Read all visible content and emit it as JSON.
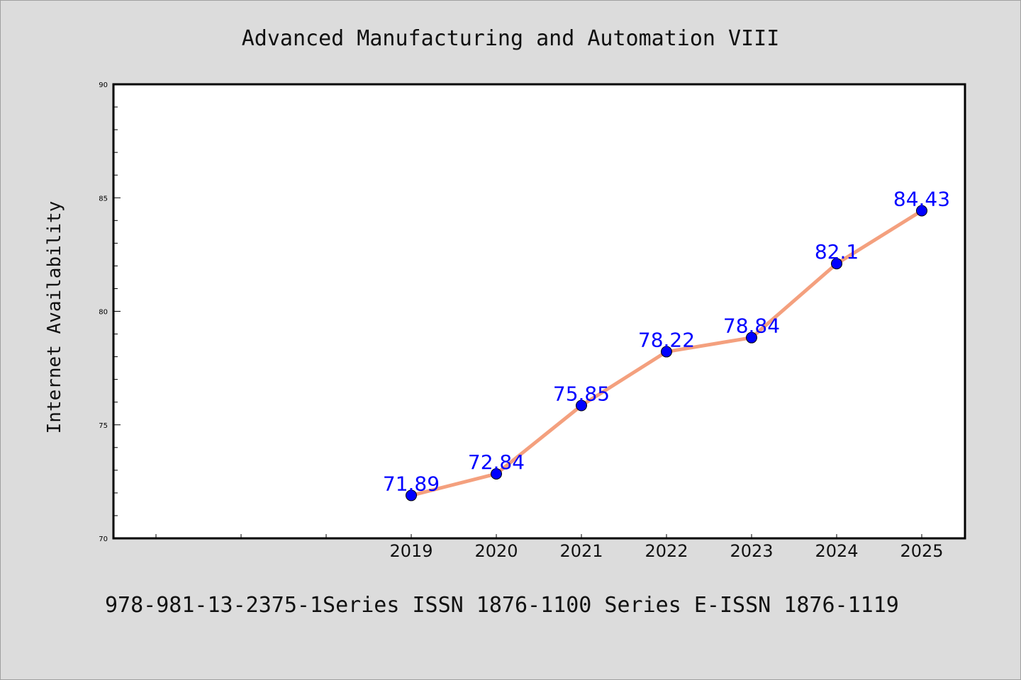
{
  "chart_data": {
    "type": "line",
    "title": "Advanced Manufacturing and Automation VIII",
    "ylabel": "Internet Availability",
    "xlabel": "",
    "categories": [
      "2019",
      "2020",
      "2021",
      "2022",
      "2023",
      "2024",
      "2025"
    ],
    "values": [
      71.89,
      72.84,
      75.85,
      78.22,
      78.84,
      82.1,
      84.43
    ],
    "data_labels": [
      "71.89",
      "72.84",
      "75.85",
      "78.22",
      "78.84",
      "82.1",
      "84.43"
    ],
    "ylim": [
      70,
      90
    ],
    "yticks": [
      "70",
      "75",
      "80",
      "85",
      "90"
    ],
    "grid": false,
    "legend": "none",
    "colors": {
      "line": "#f4a07e",
      "marker": "#0000ff",
      "label": "#0000ff"
    }
  },
  "footer": "978-981-13-2375-1Series ISSN 1876-1100 Series E-ISSN 1876-1119"
}
